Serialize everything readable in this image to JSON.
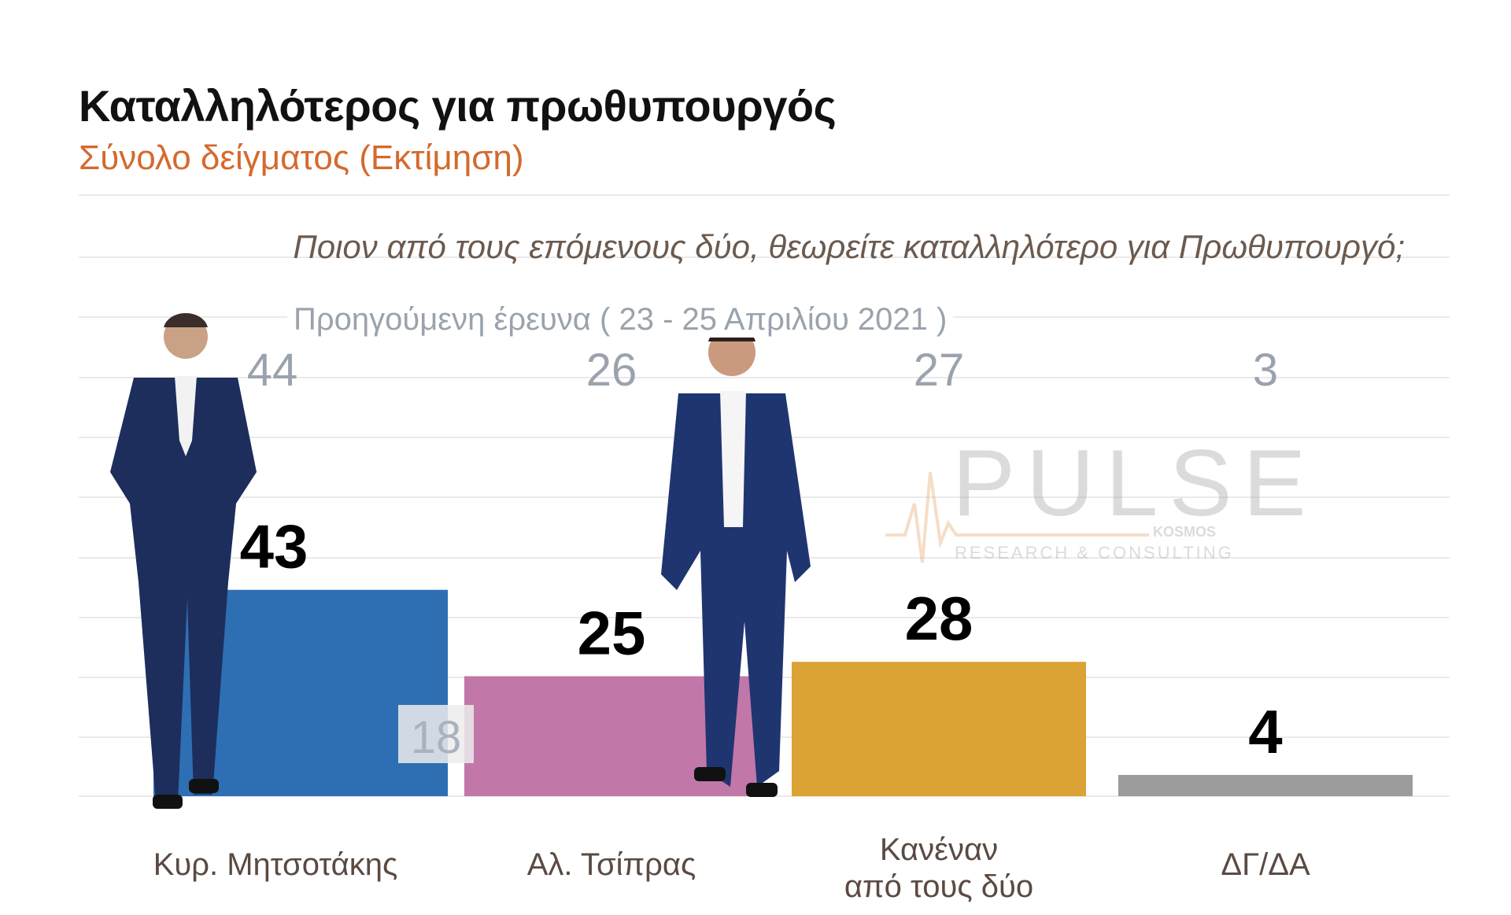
{
  "chart_data": {
    "type": "bar",
    "title": "Καταλληλότερος για πρωθυπουργός",
    "subtitle": "Σύνολο δείγματος   (Εκτίμηση)",
    "question": "Ποιον από τους επόμενους δύο, θεωρείτε καταλληλότερο για Πρωθυπουργό;",
    "previous_label": "Προηγούμενη έρευνα  ( 23 - 25 Απριλίου 2021 )",
    "categories": [
      [
        "Κυρ. Μητσοτάκης"
      ],
      [
        "Αλ. Τσίπρας"
      ],
      [
        "Κανέναν",
        "από τους δύο"
      ],
      [
        "ΔΓ/ΔΑ"
      ]
    ],
    "values": [
      43,
      25,
      28,
      4
    ],
    "previous_values": [
      44,
      26,
      27,
      3
    ],
    "extra_label": "18",
    "colors": [
      "#2e6fb4",
      "#c177a8",
      "#dba235",
      "#9b9b9b"
    ],
    "ylim": [
      0,
      50
    ],
    "grid": true
  },
  "watermark": {
    "brand": "PULSE",
    "partner": "KOSMOS",
    "tagline": "RESEARCH & CONSULTING"
  }
}
